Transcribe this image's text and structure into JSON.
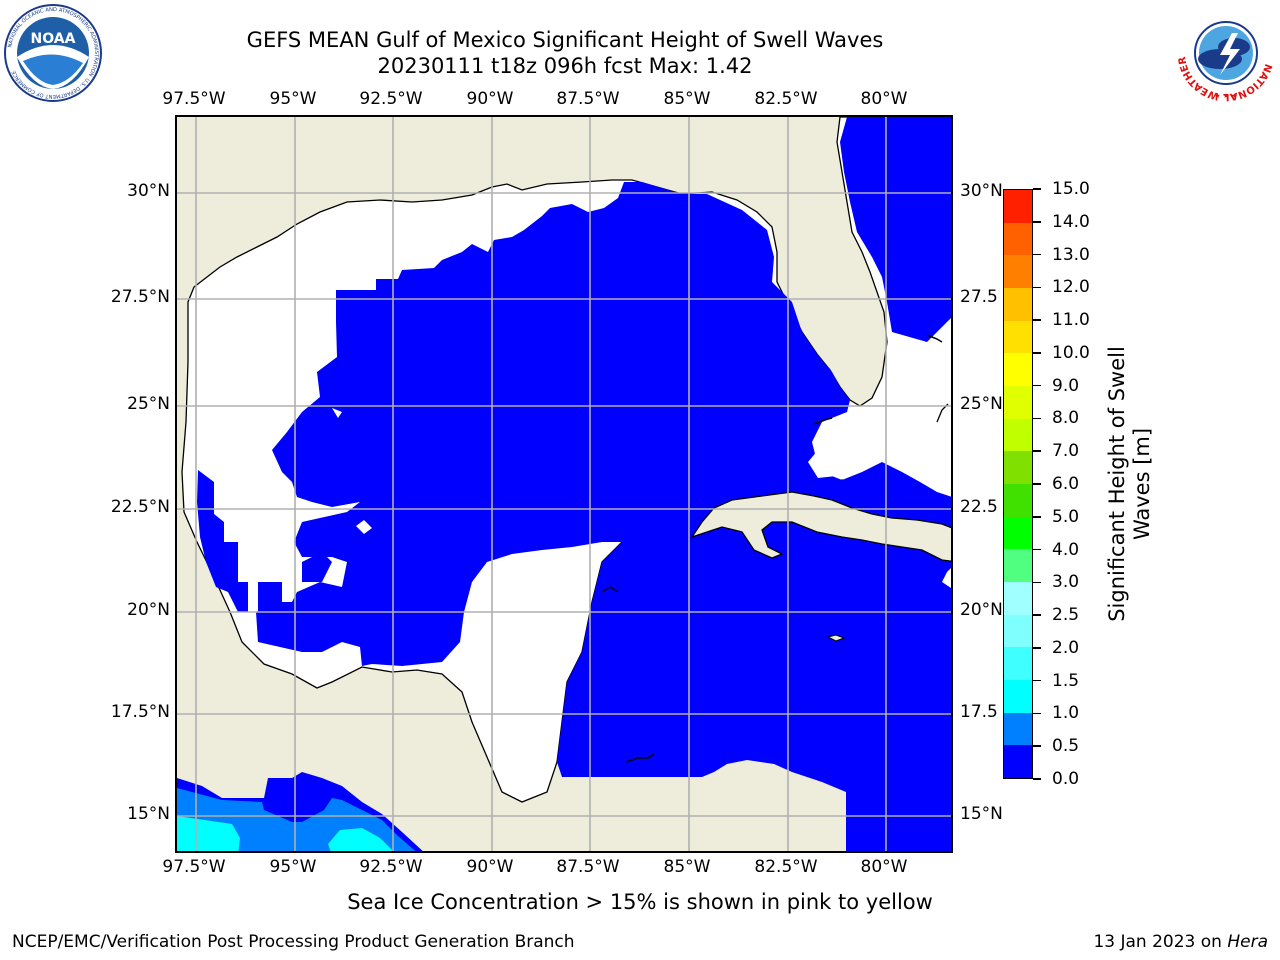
{
  "header": {
    "title_line1": "GEFS MEAN Gulf of Mexico Significant Height of Swell Waves",
    "title_line2": "20230111 t18z 096h fcst   Max: 1.42"
  },
  "logos": {
    "noaa_text": "NOAA",
    "noaa_ring_text": "NATIONAL OCEANIC AND ATMOSPHERIC ADMINISTRATION",
    "noaa_ring_text_bottom": "U.S. DEPARTMENT OF COMMERCE",
    "nws_ring_text": "NATIONAL WEATHER SERVICE"
  },
  "map": {
    "longitude_labels": [
      "97.5°W",
      "95°W",
      "92.5°W",
      "90°W",
      "87.5°W",
      "85°W",
      "82.5°W",
      "80°W"
    ],
    "latitude_labels": [
      "30°N",
      "27.5°N",
      "25°N",
      "22.5°N",
      "20°N",
      "17.5°N",
      "15°N"
    ],
    "latitude_labels_right": [
      "30°N",
      "27.5",
      "25°N",
      "22.5",
      "20°N",
      "17.5",
      "15°N"
    ],
    "gridlines": true,
    "colors": {
      "land": "#eeeddc",
      "no_data_sea": "#ffffff",
      "swell_0_05": "#0000ff",
      "swell_05_10": "#0080ff",
      "swell_10_15": "#00ffff",
      "gridline": "#b0b0b0",
      "coastline": "#000000"
    }
  },
  "colorbar": {
    "title_line1": "Significant Height of Swell",
    "title_line2": "Waves [m]",
    "tick_labels": [
      "0.0",
      "0.5",
      "1.0",
      "1.5",
      "2.0",
      "2.5",
      "3.0",
      "4.0",
      "5.0",
      "6.0",
      "7.0",
      "8.0",
      "9.0",
      "10.0",
      "11.0",
      "12.0",
      "13.0",
      "14.0",
      "15.0"
    ],
    "colors": [
      "#0000ff",
      "#0080ff",
      "#00ffff",
      "#40ffff",
      "#80ffff",
      "#a0ffff",
      "#50ff80",
      "#00ff00",
      "#40e000",
      "#80e000",
      "#c0ff00",
      "#e0ff00",
      "#ffff00",
      "#ffe000",
      "#ffc000",
      "#ff8000",
      "#ff6000",
      "#ff2000",
      "#ff0000"
    ]
  },
  "footer": {
    "note": "Sea Ice Concentration > 15% is shown in pink to yellow",
    "left": "NCEP/EMC/Verification Post Processing Product Generation Branch",
    "right_date": "13 Jan 2023 on",
    "right_host": "Hera"
  }
}
